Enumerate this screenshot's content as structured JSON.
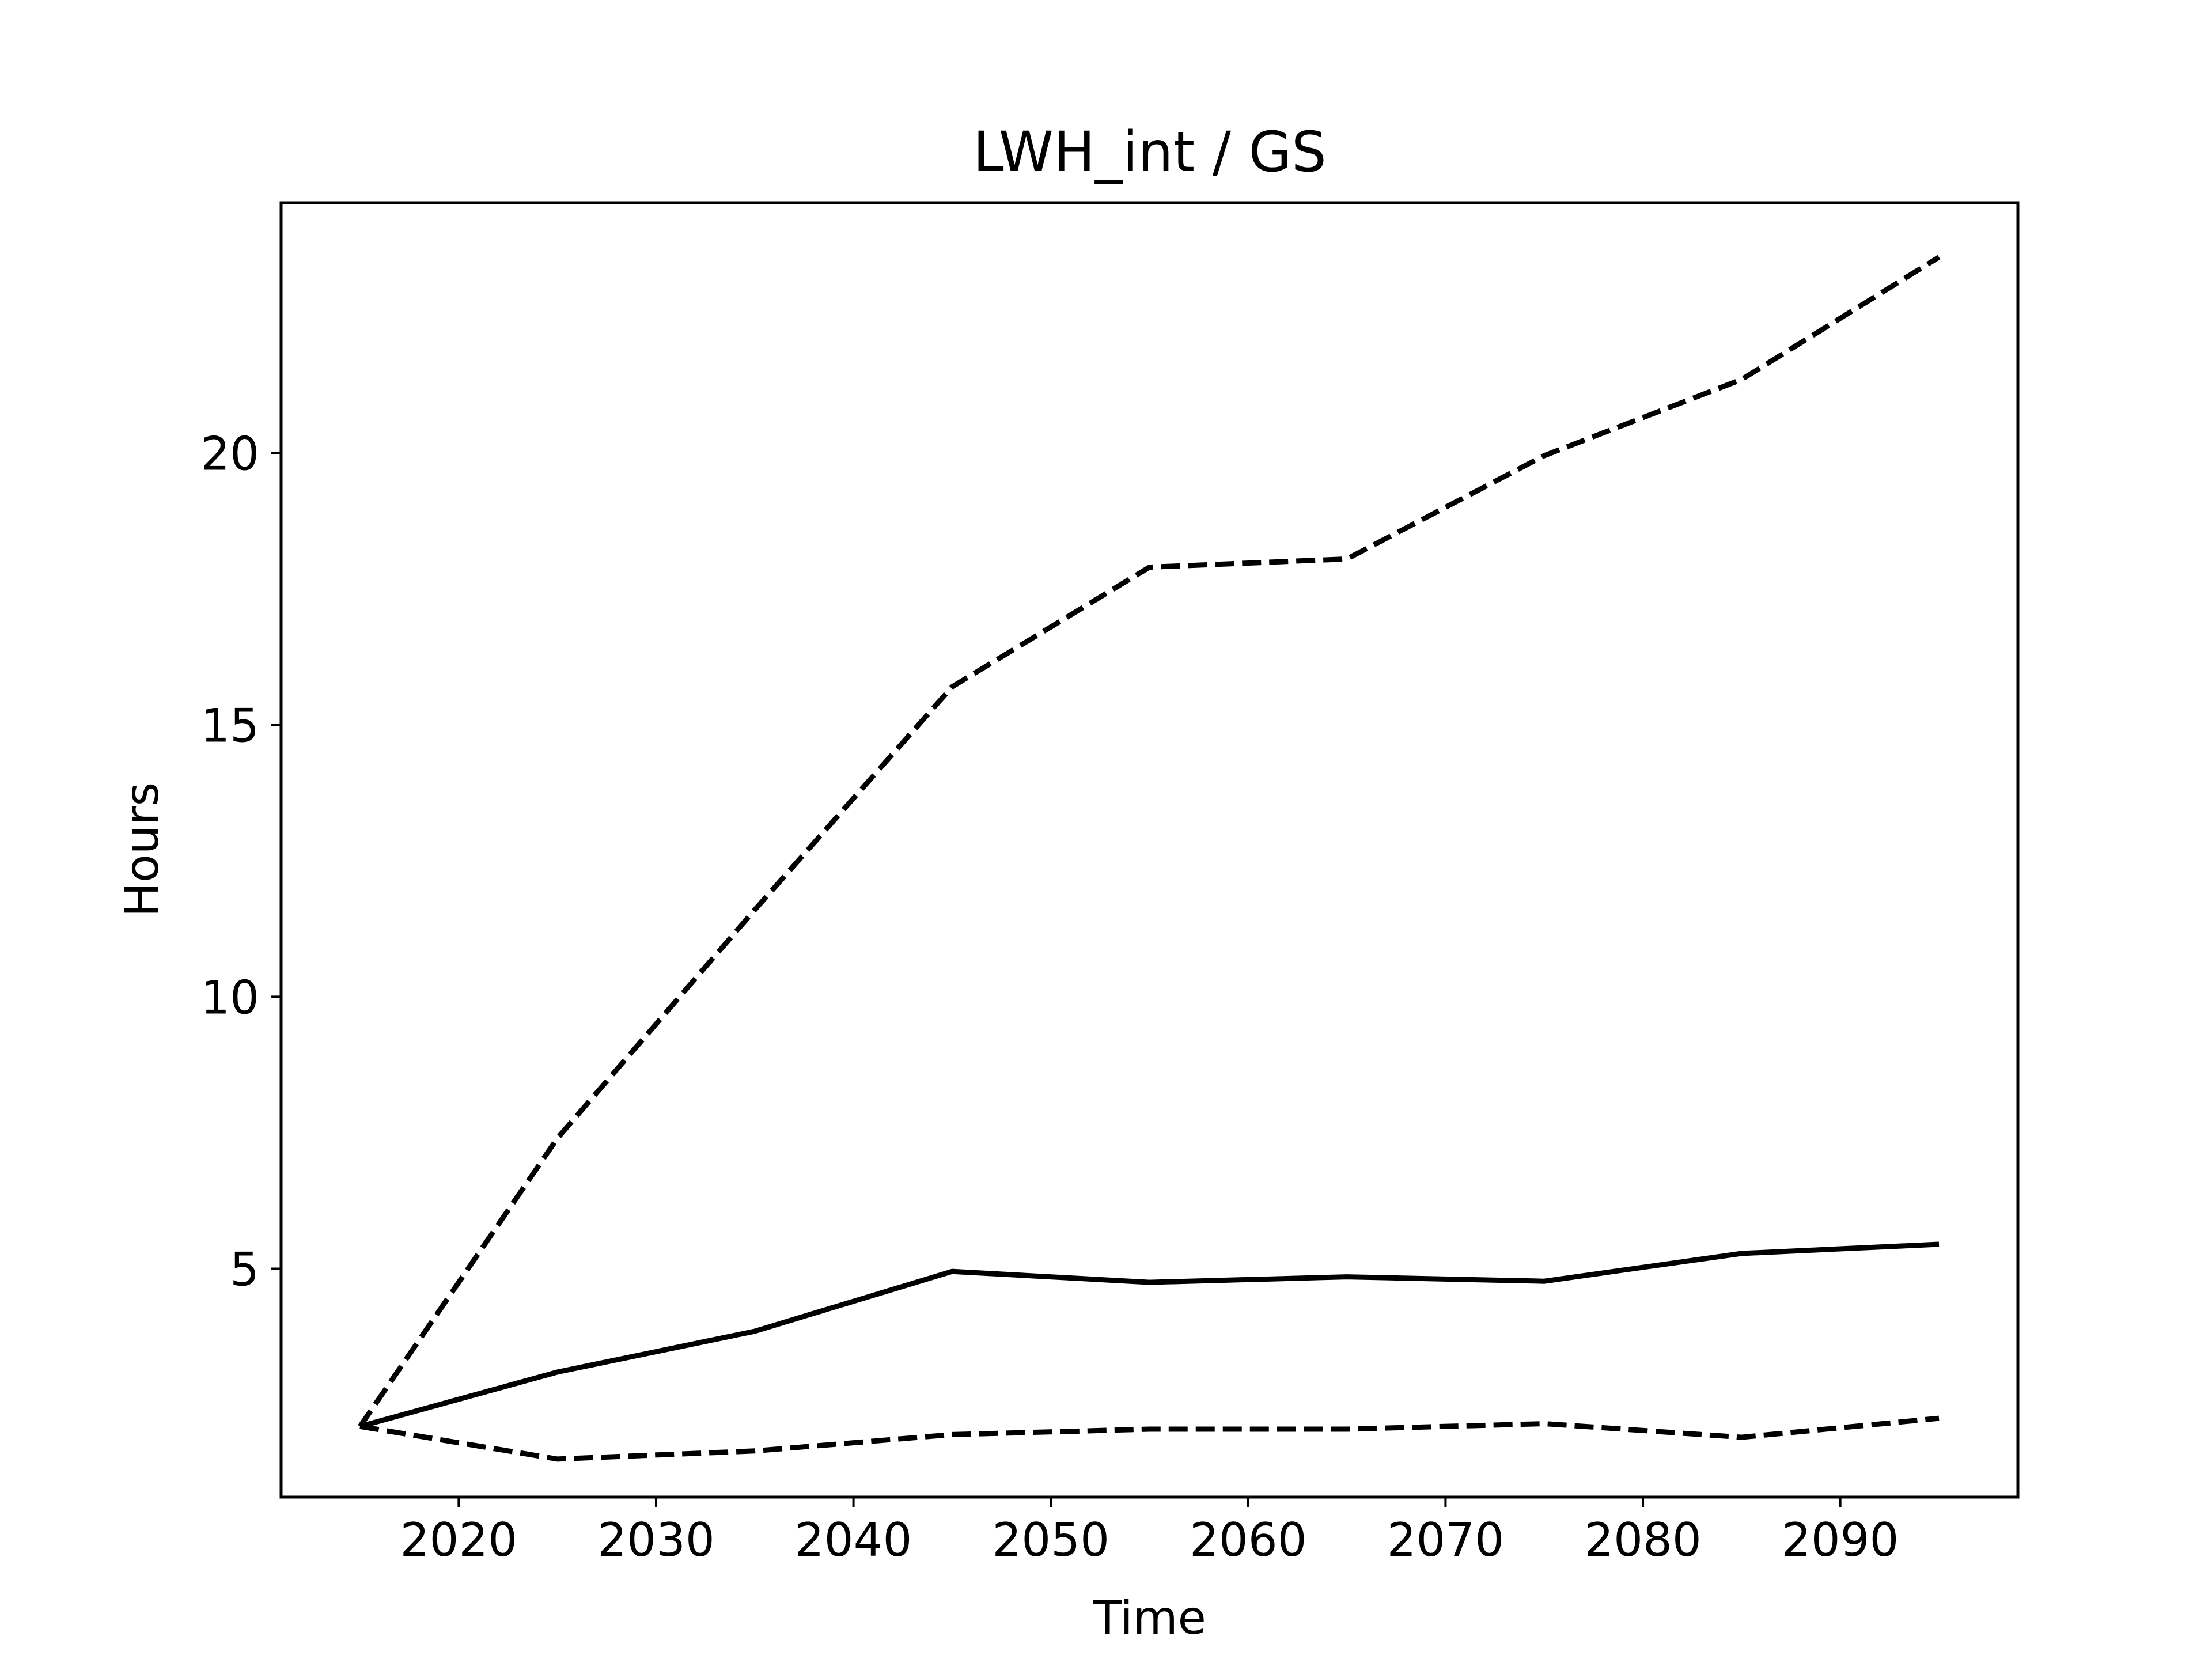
{
  "chart_data": {
    "type": "line",
    "title": "LWH_int / GS",
    "xlabel": "Time",
    "ylabel": "Hours",
    "xlim": [
      2011,
      2099
    ],
    "ylim": [
      0.8,
      24.6
    ],
    "xticks": [
      2020,
      2030,
      2040,
      2050,
      2060,
      2070,
      2080,
      2090
    ],
    "yticks": [
      5,
      10,
      15,
      20
    ],
    "grid": false,
    "legend": "none",
    "x": [
      2015,
      2025,
      2035,
      2045,
      2055,
      2065,
      2075,
      2085,
      2095
    ],
    "series": [
      {
        "style": "dashed",
        "color": "#000000",
        "values": [
          2.1,
          7.4,
          11.6,
          15.7,
          17.9,
          18.05,
          19.95,
          21.35,
          23.6
        ]
      },
      {
        "style": "solid",
        "color": "#000000",
        "values": [
          2.1,
          3.1,
          3.85,
          4.95,
          4.75,
          4.85,
          4.77,
          5.28,
          5.45
        ]
      },
      {
        "style": "dashed",
        "color": "#000000",
        "values": [
          2.1,
          1.5,
          1.65,
          1.95,
          2.05,
          2.05,
          2.15,
          1.9,
          2.25
        ]
      }
    ]
  }
}
